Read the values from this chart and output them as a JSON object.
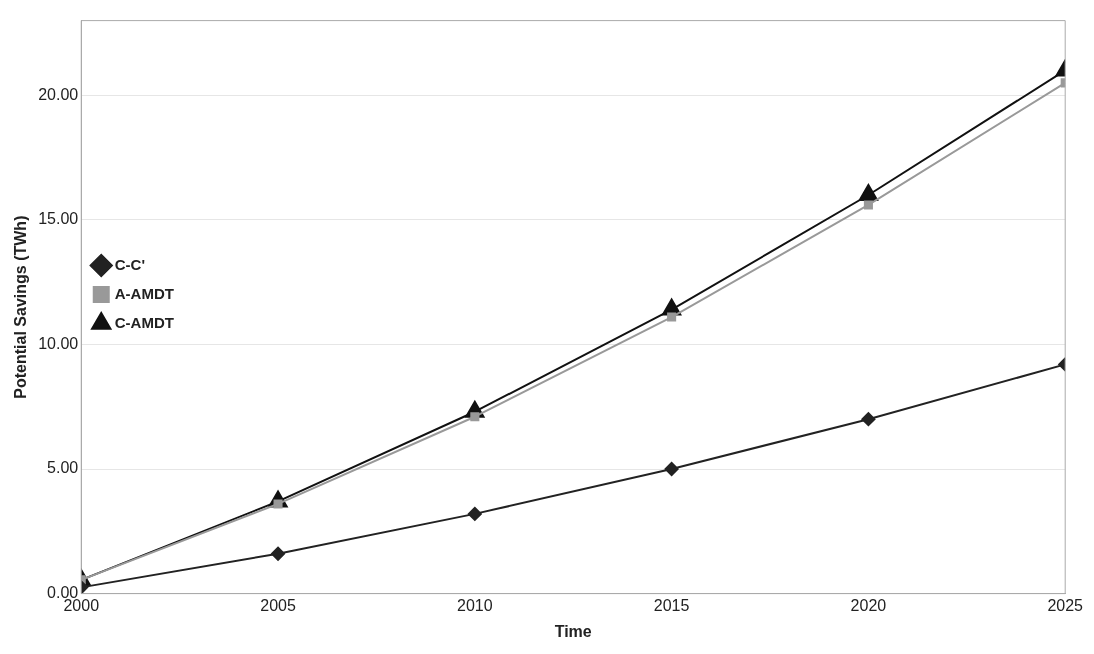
{
  "chart_data": {
    "type": "line",
    "xlabel": "Time",
    "ylabel": "Potential Savings (TWh)",
    "x": [
      2000,
      2005,
      2010,
      2015,
      2020,
      2025
    ],
    "series": [
      {
        "name": "C-C'",
        "color": "#222222",
        "marker": "diamond",
        "values": [
          0.25,
          1.6,
          3.2,
          5.0,
          7.0,
          9.2
        ]
      },
      {
        "name": "A-AMDT",
        "color": "#999999",
        "marker": "square",
        "values": [
          0.55,
          3.6,
          7.1,
          11.1,
          15.6,
          20.5
        ]
      },
      {
        "name": "C-AMDT",
        "color": "#111111",
        "marker": "triangle",
        "values": [
          0.55,
          3.7,
          7.3,
          11.4,
          16.0,
          21.0
        ]
      }
    ],
    "xlim": [
      2000,
      2025
    ],
    "xticks": [
      2000,
      2005,
      2010,
      2015,
      2020,
      2025
    ],
    "ylim": [
      0,
      23
    ],
    "yticks": [
      {
        "value": 0,
        "label": "0.00"
      },
      {
        "value": 5,
        "label": "5.00"
      },
      {
        "value": 10,
        "label": "10.00"
      },
      {
        "value": 15,
        "label": "15.00"
      },
      {
        "value": 20,
        "label": "20.00"
      }
    ],
    "grid": "y",
    "legend": "top",
    "line_style": "solid"
  }
}
